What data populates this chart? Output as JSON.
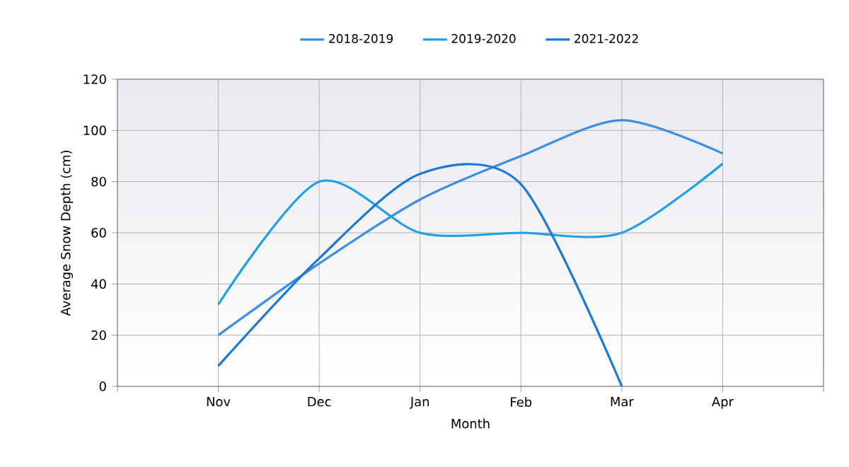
{
  "chart_data": {
    "type": "line",
    "xlabel": "Month",
    "ylabel": "Average Snow Depth (cm)",
    "categories": [
      "Nov",
      "Dec",
      "Jan",
      "Feb",
      "Mar",
      "Apr"
    ],
    "series": [
      {
        "name": "2018-2019",
        "color": "#3a8ee6",
        "values": [
          20,
          48,
          73,
          90,
          104,
          91
        ]
      },
      {
        "name": "2019-2020",
        "color": "#1e9ee8",
        "values": [
          32,
          80,
          60,
          60,
          60,
          87
        ]
      },
      {
        "name": "2021-2022",
        "color": "#1a78d6",
        "values": [
          8,
          50,
          83,
          79,
          0,
          null
        ]
      }
    ],
    "ylim": [
      0,
      120
    ],
    "yticks": [
      0,
      20,
      40,
      60,
      80,
      100,
      120
    ],
    "grid": true,
    "legend": "top",
    "marker": "none",
    "line_style": "solid"
  }
}
